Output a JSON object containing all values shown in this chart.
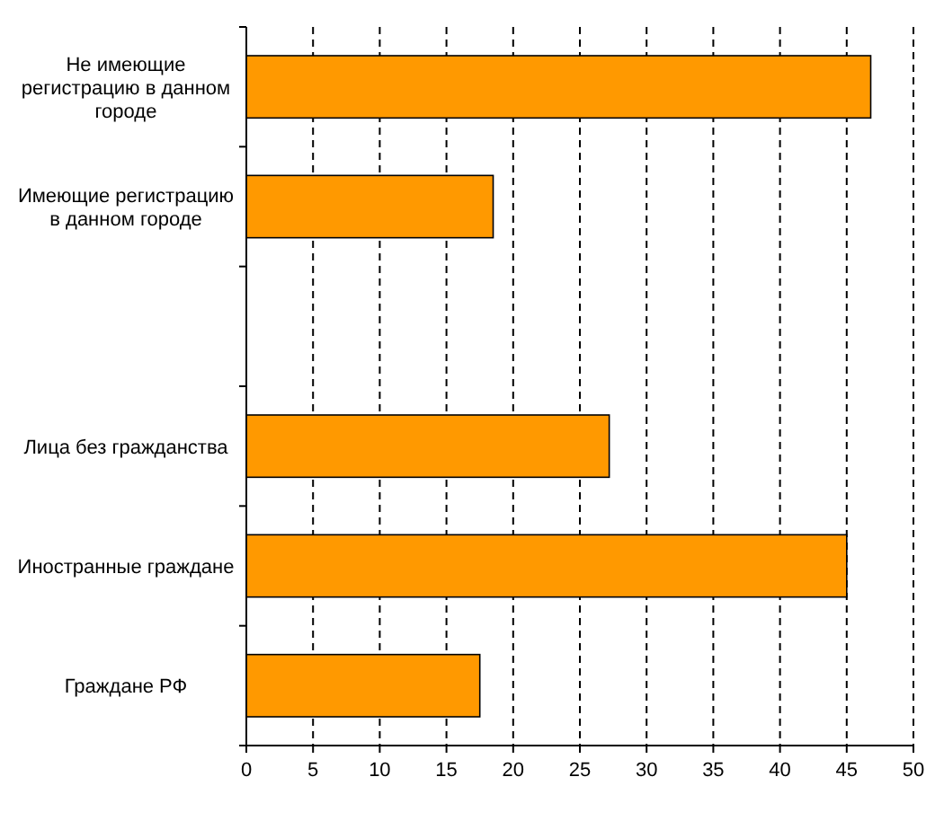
{
  "chart_data": {
    "type": "bar",
    "orientation": "horizontal",
    "categories": [
      "Не имеющие регистрацию в данном городе",
      "Имеющие регистрацию в данном городе",
      null,
      "Лица без гражданства",
      "Иностранные граждане",
      "Граждане РФ"
    ],
    "values": [
      46.8,
      18.5,
      null,
      27.2,
      45.0,
      17.5
    ],
    "color": "#ff9900",
    "xlim": [
      0,
      50
    ],
    "xticks": [
      0,
      5,
      10,
      15,
      20,
      25,
      30,
      35,
      40,
      45,
      50
    ],
    "grid": "x"
  }
}
